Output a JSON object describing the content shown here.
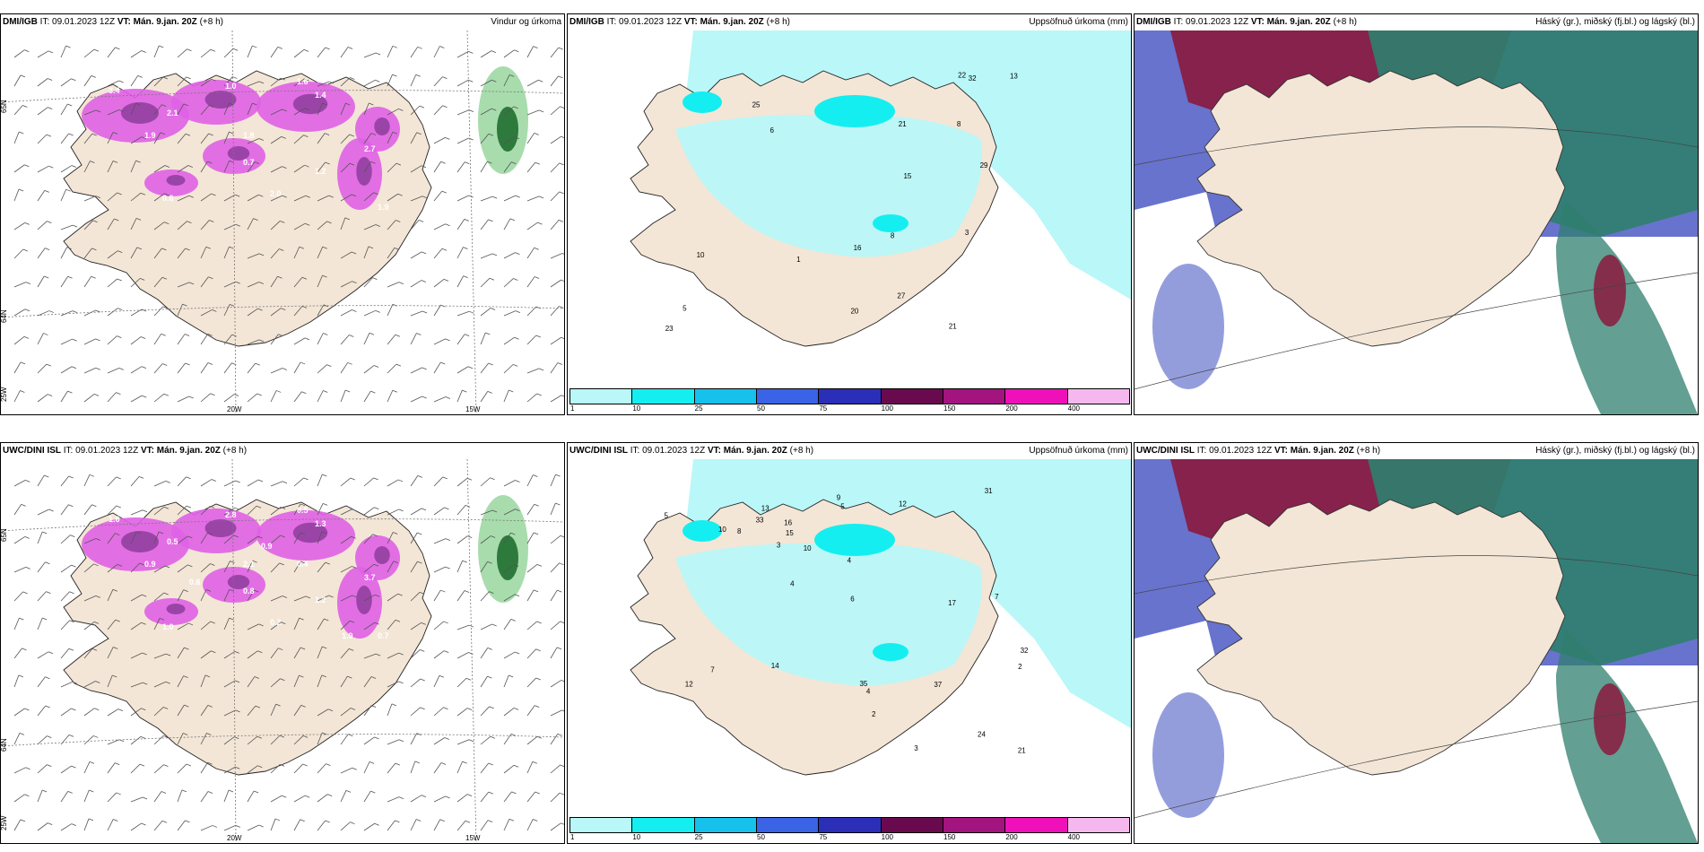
{
  "panels": [
    {
      "model": "DMI/IGB",
      "it": "IT: 09.01.2023 12Z",
      "vt": "VT: Mán. 9.jan. 20Z",
      "lead": "(+8 h)",
      "field": "Vindur og úrkoma",
      "type": "wind",
      "lat_labels": [
        "65N",
        "64N"
      ],
      "lon_labels": [
        "20W",
        "15W",
        "25W"
      ],
      "values": [
        "3.4",
        "2.1",
        "1.9",
        "1.8",
        "2.7",
        "1.4",
        "1.0",
        "2.0",
        "0.6",
        "1.6",
        "1.9",
        "1.2",
        "0.7"
      ]
    },
    {
      "model": "DMI/IGB",
      "it": "IT: 09.01.2023 12Z",
      "vt": "VT: Mán. 9.jan. 20Z",
      "lead": "(+8 h)",
      "field": "Uppsöfnuð úrkoma (mm)",
      "type": "accum",
      "values": [
        "32",
        "25",
        "13",
        "3",
        "8",
        "20",
        "22",
        "21",
        "27",
        "10",
        "16",
        "21",
        "5",
        "1",
        "29",
        "23",
        "15",
        "8",
        "6"
      ]
    },
    {
      "model": "DMI/IGB",
      "it": "IT: 09.01.2023 12Z",
      "vt": "VT: Mán. 9.jan. 20Z",
      "lead": "(+8 h)",
      "field": "Háský (gr.), miðský (fj.bl.) og lágský (bl.)",
      "type": "cloud"
    },
    {
      "model": "UWC/DINI ISL",
      "it": "IT: 09.01.2023 12Z",
      "vt": "VT: Mán. 9.jan. 20Z",
      "lead": "(+8 h)",
      "field": "",
      "type": "wind",
      "lat_labels": [
        "65N",
        "64N"
      ],
      "lon_labels": [
        "20W",
        "15W",
        "25W"
      ],
      "values": [
        "1.6",
        "0.5",
        "0.9",
        "2.1",
        "3.7",
        "1.3",
        "2.8",
        "0.2",
        "1.0",
        "0.5",
        "0.7",
        "1.2",
        "0.8",
        "1.9",
        "0.6",
        "0.4",
        "0.9"
      ]
    },
    {
      "model": "UWC/DINI ISL",
      "it": "IT: 09.01.2023 12Z",
      "vt": "VT: Mán. 9.jan. 20Z",
      "lead": "(+8 h)",
      "field": "Uppsöfnuð úrkoma (mm)",
      "type": "accum",
      "values": [
        "7",
        "4",
        "10",
        "13",
        "14",
        "17",
        "37",
        "31",
        "33",
        "24",
        "35",
        "32",
        "21",
        "12",
        "8",
        "10",
        "6",
        "15",
        "9",
        "5",
        "3",
        "4",
        "7",
        "2",
        "2",
        "12",
        "16",
        "5",
        "4",
        "3"
      ]
    },
    {
      "model": "UWC/DINI ISL",
      "it": "IT: 09.01.2023 12Z",
      "vt": "VT: Mán. 9.jan. 20Z",
      "lead": "(+8 h)",
      "field": "Háský (gr.), miðský (fj.bl.) og lágský (bl.)",
      "type": "cloud"
    }
  ],
  "colorbar": {
    "labels": [
      "1",
      "10",
      "25",
      "50",
      "75",
      "100",
      "150",
      "200",
      "400"
    ],
    "colors": [
      "#b9f7f8",
      "#15eef0",
      "#16c1ec",
      "#3a63e6",
      "#2b2fb8",
      "#6a0a4e",
      "#a3147f",
      "#ef10b9",
      "#f5b8ee"
    ]
  },
  "palette": {
    "land": "#f3e6d6",
    "sea_precip": "#b9f7f8",
    "precip_pink": "#e060e6",
    "precip_purple": "#9b44a8",
    "cloud_high": "#2f7f6e",
    "cloud_mid": "#8a1a3e",
    "cloud_low": "#4d5bc4"
  }
}
